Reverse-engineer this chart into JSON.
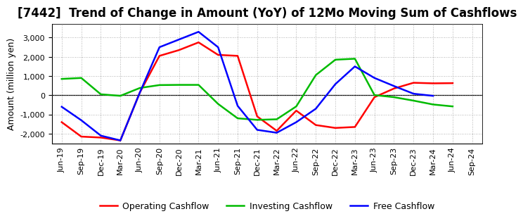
{
  "title": "[7442]  Trend of Change in Amount (YoY) of 12Mo Moving Sum of Cashflows",
  "ylabel": "Amount (million yen)",
  "x_labels": [
    "Jun-19",
    "Sep-19",
    "Dec-19",
    "Mar-20",
    "Jun-20",
    "Sep-20",
    "Dec-20",
    "Mar-21",
    "Jun-21",
    "Sep-21",
    "Dec-21",
    "Mar-22",
    "Jun-22",
    "Sep-22",
    "Dec-22",
    "Mar-23",
    "Jun-23",
    "Sep-23",
    "Dec-23",
    "Mar-24",
    "Jun-24",
    "Sep-24"
  ],
  "operating": [
    -1400,
    -2150,
    -2200,
    -2350,
    150,
    2050,
    2350,
    2750,
    2100,
    2050,
    -1100,
    -1850,
    -800,
    -1550,
    -1700,
    -1650,
    -100,
    350,
    650,
    620,
    630,
    null
  ],
  "investing": [
    850,
    900,
    50,
    -30,
    380,
    530,
    540,
    540,
    -450,
    -1200,
    -1280,
    -1250,
    -580,
    1050,
    1850,
    1900,
    10,
    -100,
    -280,
    -480,
    -580,
    null
  ],
  "free": [
    -600,
    -1300,
    -2100,
    -2350,
    150,
    2500,
    2900,
    3300,
    2500,
    -550,
    -1800,
    -1950,
    -1400,
    -700,
    580,
    1500,
    900,
    480,
    80,
    -30,
    null,
    null
  ],
  "operating_color": "#ff0000",
  "investing_color": "#00bb00",
  "free_color": "#0000ff",
  "background_color": "#ffffff",
  "grid_color": "#999999",
  "ylim": [
    -2500,
    3700
  ],
  "yticks": [
    -2000,
    -1000,
    0,
    1000,
    2000,
    3000
  ],
  "line_width": 1.8,
  "title_fontsize": 12,
  "axis_fontsize": 9,
  "tick_fontsize": 8
}
